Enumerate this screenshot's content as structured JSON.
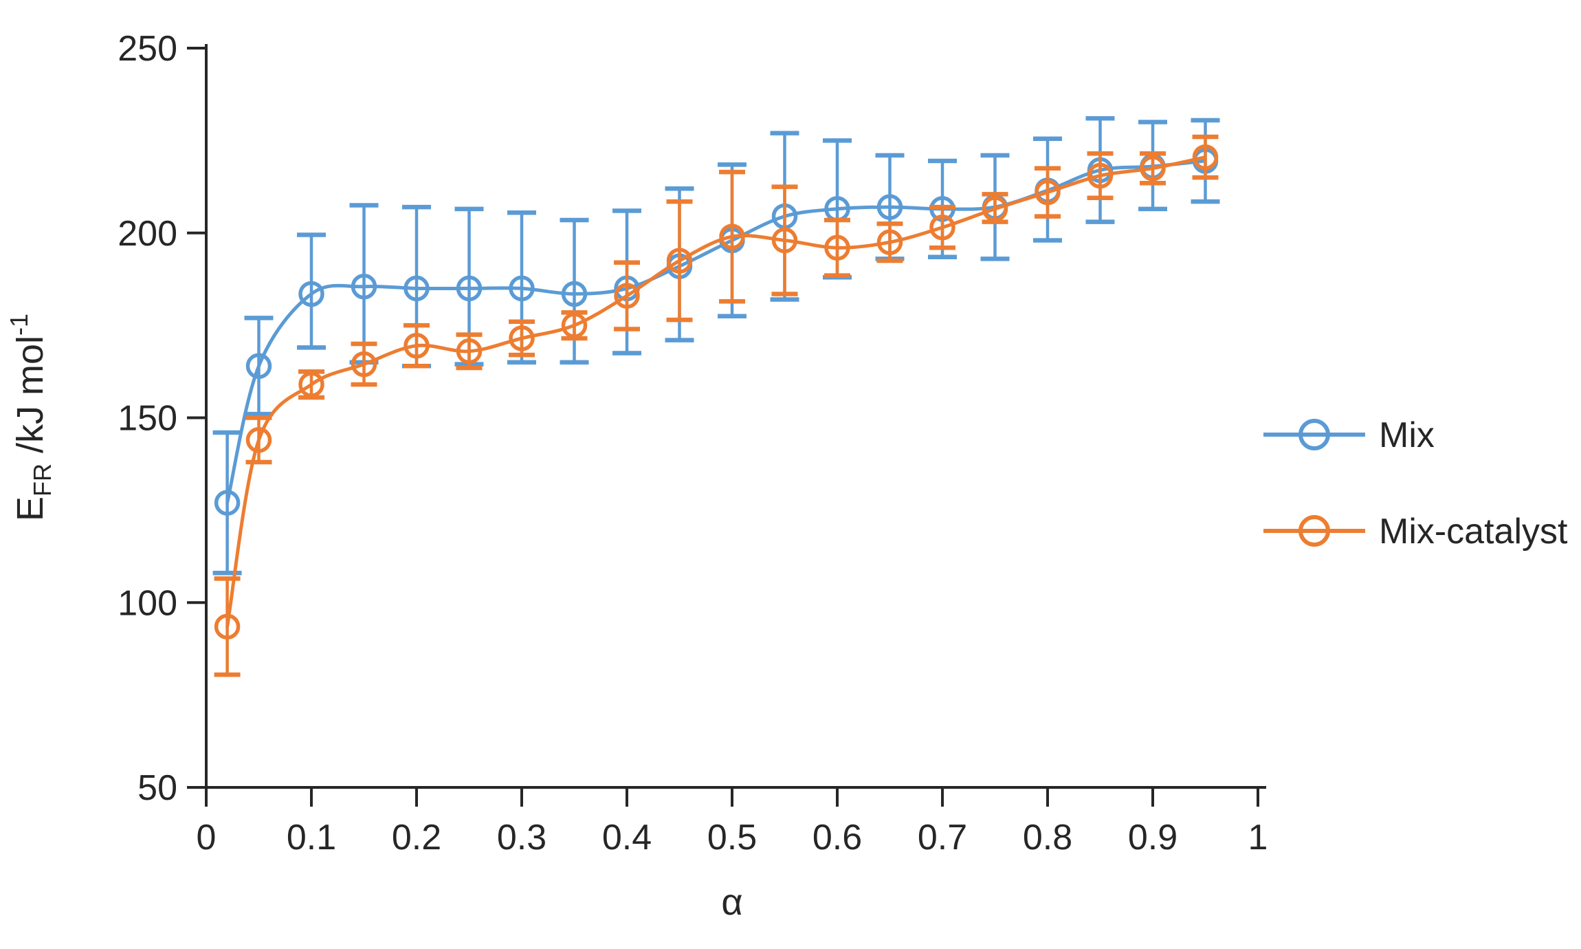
{
  "chart_data": {
    "type": "line",
    "title": "",
    "xlabel": "α",
    "ylabel_text": "EFR /kJ mol-1",
    "ylabel_main": "E",
    "ylabel_sub": "FR",
    "ylabel_rest": " /kJ mol",
    "ylabel_sup": "-1",
    "xlim": [
      0,
      1
    ],
    "ylim": [
      50,
      250
    ],
    "grid": false,
    "legend_position": "right",
    "marker": "open-circle",
    "x_ticks": [
      0,
      0.1,
      0.2,
      0.3,
      0.4,
      0.5,
      0.6,
      0.7,
      0.8,
      0.9,
      1
    ],
    "x_tick_labels": [
      "0",
      "0.1",
      "0.2",
      "0.3",
      "0.4",
      "0.5",
      "0.6",
      "0.7",
      "0.8",
      "0.9",
      "1"
    ],
    "y_ticks": [
      50,
      100,
      150,
      200,
      250
    ],
    "y_tick_labels": [
      "50",
      "100",
      "150",
      "200",
      "250"
    ],
    "x": [
      0.02,
      0.05,
      0.1,
      0.15,
      0.2,
      0.25,
      0.3,
      0.35,
      0.4,
      0.45,
      0.5,
      0.55,
      0.6,
      0.65,
      0.7,
      0.75,
      0.8,
      0.85,
      0.9,
      0.95
    ],
    "series": [
      {
        "name": "Mix",
        "color": "#5B9BD5",
        "values": [
          127,
          164,
          183.5,
          185.5,
          185,
          185,
          185,
          183.5,
          185,
          191,
          198,
          204.5,
          206.5,
          207,
          206.5,
          207,
          211.5,
          217,
          218,
          219.5
        ],
        "err_hi": [
          146,
          177,
          199.5,
          207.5,
          207,
          206.5,
          205.5,
          203.5,
          206,
          212,
          218.5,
          227,
          225,
          221,
          219.5,
          221,
          225.5,
          231,
          230,
          230.5
        ],
        "err_lo": [
          108,
          151,
          169,
          165,
          164,
          164.5,
          165,
          165,
          167.5,
          171,
          177.5,
          182,
          188,
          193,
          193.5,
          193,
          198,
          203,
          206.5,
          208.5
        ]
      },
      {
        "name": "Mix-catalyst",
        "color": "#ED7D31",
        "values": [
          93.5,
          144,
          159,
          164.5,
          169.5,
          168,
          171.5,
          175,
          183,
          192.5,
          199,
          198,
          196,
          197.5,
          201.5,
          206.5,
          211,
          215.5,
          217.5,
          220.5
        ],
        "err_hi": [
          106.5,
          150,
          162.5,
          170,
          175,
          172.5,
          176,
          178.5,
          192,
          208.5,
          216.5,
          212.5,
          203.5,
          202.5,
          207,
          210.5,
          217.5,
          221.5,
          221.5,
          226
        ],
        "err_lo": [
          80.5,
          138,
          155.5,
          159,
          164,
          163.5,
          167,
          171.5,
          174,
          176.5,
          181.5,
          183.5,
          188.5,
          192.5,
          196,
          203,
          204.5,
          209.5,
          213.5,
          215
        ]
      }
    ]
  }
}
